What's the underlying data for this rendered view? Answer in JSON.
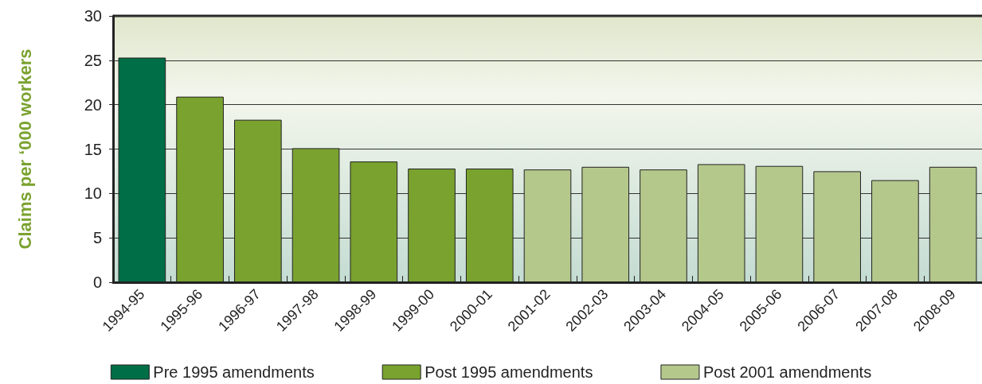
{
  "chart_data": {
    "type": "bar",
    "ylabel": "Claims per ‘000 workers",
    "categories": [
      "1994-95",
      "1995-96",
      "1996-97",
      "1997-98",
      "1998-99",
      "1999-00",
      "2000-01",
      "2001-02",
      "2002-03",
      "2003-04",
      "2004-05",
      "2005-06",
      "2006-07",
      "2007-08",
      "2008-09"
    ],
    "series": [
      {
        "name": "Pre 1995 amendments",
        "color": "#006e46",
        "values": [
          25.3,
          null,
          null,
          null,
          null,
          null,
          null,
          null,
          null,
          null,
          null,
          null,
          null,
          null,
          null
        ]
      },
      {
        "name": "Post 1995 amendments",
        "color": "#7aa22f",
        "values": [
          null,
          20.9,
          18.3,
          15.1,
          13.6,
          12.8,
          12.8,
          null,
          null,
          null,
          null,
          null,
          null,
          null,
          null
        ]
      },
      {
        "name": "Post 2001 amendments",
        "color": "#b5c88c",
        "values": [
          null,
          null,
          null,
          null,
          null,
          null,
          null,
          12.7,
          13.0,
          12.7,
          13.3,
          13.1,
          12.5,
          11.5,
          13.0
        ]
      }
    ],
    "ylim": [
      0,
      30
    ],
    "yticks": [
      0,
      5,
      10,
      15,
      20,
      25,
      30
    ],
    "grid": "y",
    "legend": "bottom"
  }
}
